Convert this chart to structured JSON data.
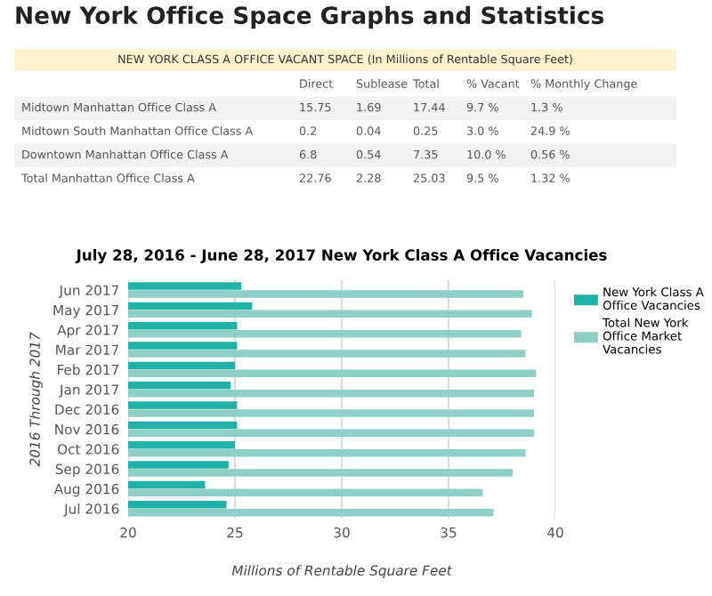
{
  "chart_data": [
    {
      "type": "other",
      "title": "New York Office Space Graphs and Statistics",
      "subtitle": "NEW YORK CLASS A OFFICE VACANT SPACE (In Millions of Rentable Square Feet)",
      "categories": [
        "Direct",
        "Sublease",
        "Total",
        "% Vacant",
        "% Monthly Change"
      ],
      "y_categories": [
        "Midtown Manhattan Office Class A",
        "Midtown South Manhattan Office Class A",
        "Downtown Manhattan Office Class A",
        "Total Manhattan Office Class A"
      ],
      "cell_labels": [
        [
          "15.75",
          "1.69",
          "17.44",
          "9.7 %",
          "1.3 %"
        ],
        [
          "0.2",
          "0.04",
          "0.25",
          "3.0 %",
          "24.9 %"
        ],
        [
          "6.8",
          "0.54",
          "7.35",
          "10.0 %",
          "0.56 %"
        ],
        [
          "22.76",
          "2.28",
          "25.03",
          "9.5 %",
          "1.32 %"
        ]
      ]
    },
    {
      "type": "bar",
      "orientation": "horizontal",
      "title": "July 28, 2016 - June 28, 2017 New York Class A Office Vacancies",
      "xlabel": "Millions of Rentable Square Feet",
      "ylabel": "2016 Through 2017",
      "categories": [
        "Jun 2017",
        "May 2017",
        "Apr 2017",
        "Mar 2017",
        "Feb 2017",
        "Jan 2017",
        "Dec 2016",
        "Nov 2016",
        "Oct 2016",
        "Sep 2016",
        "Aug 2016",
        "Jul 2016"
      ],
      "series": [
        {
          "name": "New York Class A Office Vacancies",
          "color": "#20b2a6",
          "values": [
            25.3,
            25.8,
            25.1,
            25.1,
            25.0,
            24.8,
            25.1,
            25.1,
            25.0,
            24.7,
            23.6,
            24.6
          ]
        },
        {
          "name": "Total New York Office Market Vacancies",
          "color": "#8ecfc6",
          "values": [
            38.5,
            38.9,
            38.4,
            38.6,
            39.1,
            39.0,
            39.0,
            39.0,
            38.6,
            38.0,
            36.6,
            37.1
          ]
        }
      ],
      "xlim": [
        20,
        40
      ],
      "xticks": [
        20,
        25,
        30,
        35,
        40
      ],
      "grid": "x",
      "legend": "right"
    }
  ]
}
